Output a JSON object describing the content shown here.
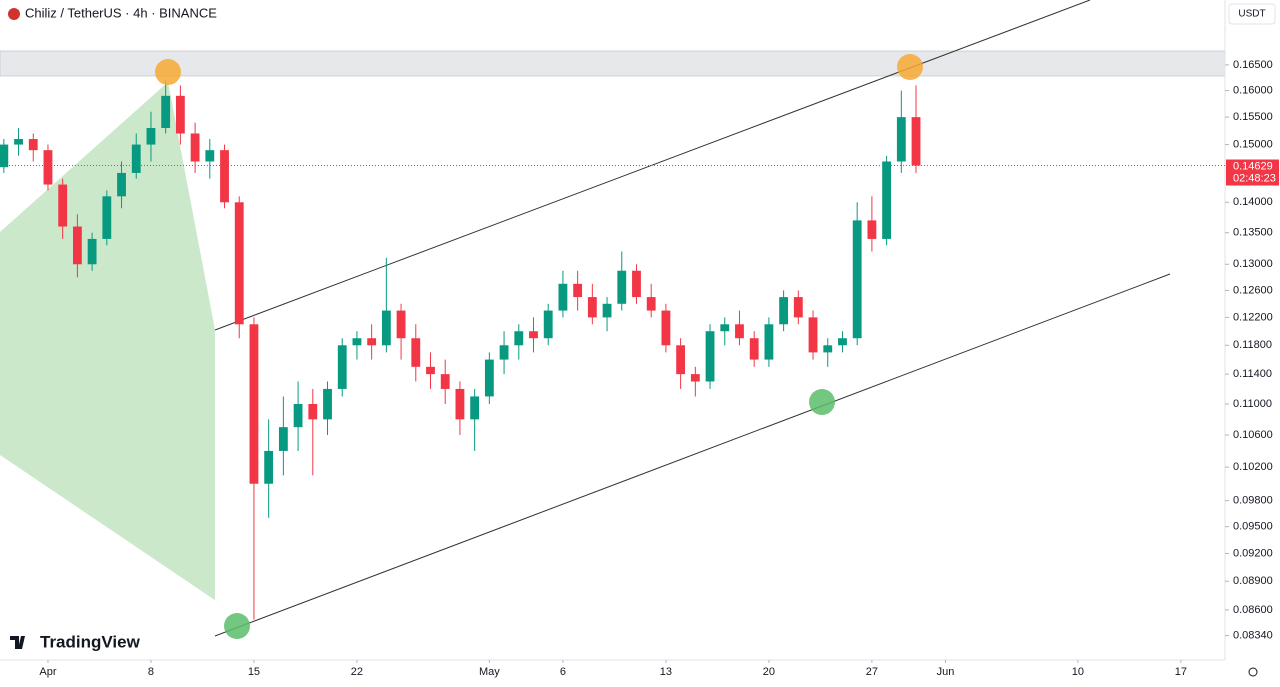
{
  "chart_data": {
    "type": "candlestick",
    "title": "Chiliz / TetherUS · 4h · BINANCE",
    "currency": "USDT",
    "brand": "TradingView",
    "log_scale": true,
    "up_color": "#089981",
    "down_color": "#f23645",
    "x": [
      -3,
      -2,
      -1,
      0,
      1,
      2,
      3,
      4,
      5,
      6,
      7,
      8,
      9,
      10,
      11,
      12,
      13,
      14,
      15,
      16,
      17,
      18,
      19,
      20,
      21,
      22,
      23,
      24,
      25,
      26,
      27,
      28,
      29,
      30,
      31,
      32,
      33,
      34,
      35,
      36,
      37,
      38,
      39,
      40,
      41,
      42,
      43,
      44,
      45,
      46,
      47,
      48,
      49,
      50,
      51,
      52,
      53,
      54,
      55,
      56,
      57,
      58,
      59
    ],
    "open": [
      0.146,
      0.15,
      0.151,
      0.149,
      0.143,
      0.136,
      0.13,
      0.134,
      0.141,
      0.145,
      0.15,
      0.153,
      0.159,
      0.152,
      0.147,
      0.149,
      0.14,
      0.121,
      0.1,
      0.104,
      0.107,
      0.11,
      0.108,
      0.112,
      0.118,
      0.119,
      0.118,
      0.123,
      0.119,
      0.115,
      0.114,
      0.112,
      0.108,
      0.111,
      0.116,
      0.118,
      0.12,
      0.119,
      0.123,
      0.127,
      0.125,
      0.122,
      0.124,
      0.129,
      0.125,
      0.123,
      0.118,
      0.114,
      0.113,
      0.12,
      0.121,
      0.119,
      0.116,
      0.121,
      0.125,
      0.122,
      0.117,
      0.118,
      0.119,
      0.137,
      0.134,
      0.147,
      0.155
    ],
    "high": [
      0.151,
      0.153,
      0.152,
      0.15,
      0.144,
      0.138,
      0.135,
      0.142,
      0.147,
      0.152,
      0.156,
      0.162,
      0.161,
      0.154,
      0.151,
      0.15,
      0.141,
      0.122,
      0.108,
      0.111,
      0.113,
      0.112,
      0.113,
      0.119,
      0.12,
      0.121,
      0.131,
      0.124,
      0.121,
      0.117,
      0.116,
      0.113,
      0.112,
      0.117,
      0.12,
      0.121,
      0.122,
      0.124,
      0.129,
      0.129,
      0.127,
      0.125,
      0.132,
      0.13,
      0.127,
      0.124,
      0.119,
      0.115,
      0.121,
      0.122,
      0.123,
      0.12,
      0.122,
      0.126,
      0.126,
      0.123,
      0.119,
      0.12,
      0.14,
      0.141,
      0.148,
      0.16,
      0.161
    ],
    "low": [
      0.145,
      0.148,
      0.147,
      0.142,
      0.134,
      0.128,
      0.129,
      0.133,
      0.139,
      0.144,
      0.147,
      0.152,
      0.15,
      0.145,
      0.144,
      0.139,
      0.119,
      0.085,
      0.096,
      0.101,
      0.104,
      0.101,
      0.106,
      0.111,
      0.116,
      0.116,
      0.117,
      0.116,
      0.113,
      0.112,
      0.11,
      0.106,
      0.104,
      0.11,
      0.114,
      0.116,
      0.117,
      0.118,
      0.122,
      0.123,
      0.121,
      0.12,
      0.123,
      0.124,
      0.122,
      0.117,
      0.112,
      0.111,
      0.112,
      0.118,
      0.118,
      0.115,
      0.115,
      0.12,
      0.121,
      0.116,
      0.115,
      0.117,
      0.118,
      0.132,
      0.133,
      0.145,
      0.145
    ],
    "close": [
      0.15,
      0.151,
      0.149,
      0.143,
      0.136,
      0.13,
      0.134,
      0.141,
      0.145,
      0.15,
      0.153,
      0.159,
      0.152,
      0.147,
      0.149,
      0.14,
      0.121,
      0.1,
      0.104,
      0.107,
      0.11,
      0.108,
      0.112,
      0.118,
      0.119,
      0.118,
      0.123,
      0.119,
      0.115,
      0.114,
      0.112,
      0.108,
      0.111,
      0.116,
      0.118,
      0.12,
      0.119,
      0.123,
      0.127,
      0.125,
      0.122,
      0.124,
      0.129,
      0.125,
      0.123,
      0.118,
      0.114,
      0.113,
      0.12,
      0.121,
      0.119,
      0.116,
      0.121,
      0.125,
      0.122,
      0.117,
      0.118,
      0.119,
      0.137,
      0.134,
      0.147,
      0.155,
      0.14629
    ],
    "last_price": 0.14629,
    "countdown": "02:48:23",
    "xlim": [
      -3.26,
      80
    ],
    "xticks": [
      {
        "value": 0,
        "label": "Apr"
      },
      {
        "value": 7,
        "label": "8"
      },
      {
        "value": 14,
        "label": "15"
      },
      {
        "value": 21,
        "label": "22"
      },
      {
        "value": 30,
        "label": "May"
      },
      {
        "value": 35,
        "label": "6"
      },
      {
        "value": 42,
        "label": "13"
      },
      {
        "value": 49,
        "label": "20"
      },
      {
        "value": 56,
        "label": "27"
      },
      {
        "value": 61,
        "label": "Jun"
      },
      {
        "value": 70,
        "label": "10"
      },
      {
        "value": 77,
        "label": "17"
      }
    ],
    "ylim": [
      0.081,
      0.1783
    ],
    "yticks": [
      {
        "value": 0.165,
        "label": "0.16500"
      },
      {
        "value": 0.16,
        "label": "0.16000"
      },
      {
        "value": 0.155,
        "label": "0.15500"
      },
      {
        "value": 0.15,
        "label": "0.15000"
      },
      {
        "value": 0.14,
        "label": "0.14000"
      },
      {
        "value": 0.135,
        "label": "0.13500"
      },
      {
        "value": 0.13,
        "label": "0.13000"
      },
      {
        "value": 0.126,
        "label": "0.12600"
      },
      {
        "value": 0.122,
        "label": "0.12200"
      },
      {
        "value": 0.118,
        "label": "0.11800"
      },
      {
        "value": 0.114,
        "label": "0.11400"
      },
      {
        "value": 0.11,
        "label": "0.11000"
      },
      {
        "value": 0.106,
        "label": "0.10600"
      },
      {
        "value": 0.102,
        "label": "0.10200"
      },
      {
        "value": 0.098,
        "label": "0.09800"
      },
      {
        "value": 0.095,
        "label": "0.09500"
      },
      {
        "value": 0.092,
        "label": "0.09200"
      },
      {
        "value": 0.089,
        "label": "0.08900"
      },
      {
        "value": 0.086,
        "label": "0.08600"
      },
      {
        "value": 0.0834,
        "label": "0.08340"
      }
    ]
  }
}
